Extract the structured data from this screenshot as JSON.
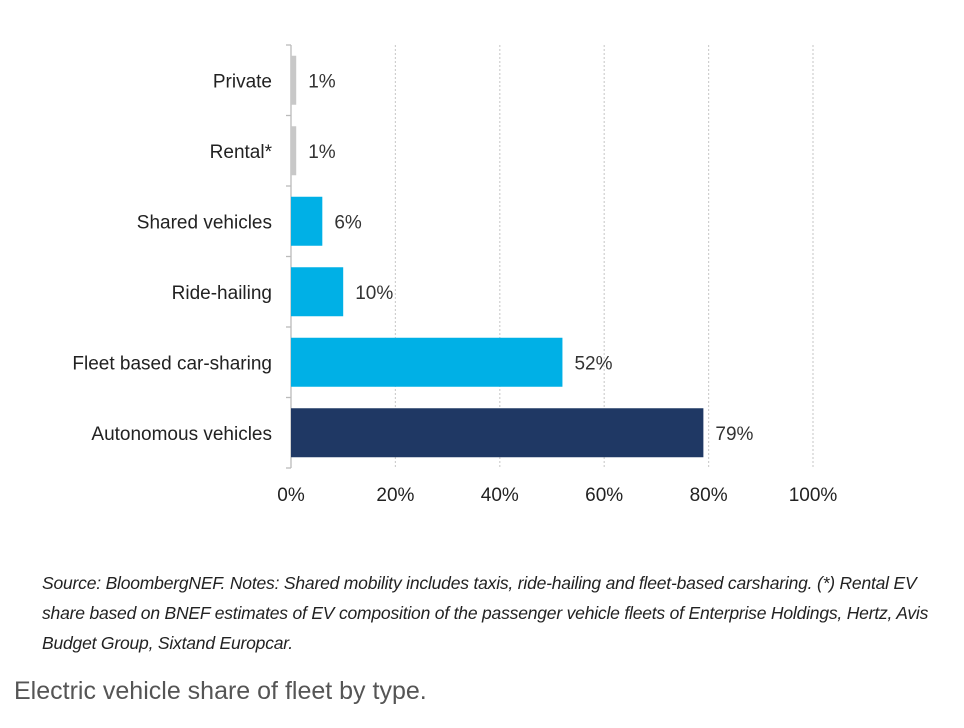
{
  "chart_data": {
    "type": "bar",
    "orientation": "horizontal",
    "categories": [
      "Private",
      "Rental*",
      "Shared vehicles",
      "Ride-hailing",
      "Fleet based car-sharing",
      "Autonomous vehicles"
    ],
    "values": [
      1,
      1,
      6,
      10,
      52,
      79
    ],
    "data_labels": [
      "1%",
      "1%",
      "6%",
      "10%",
      "52%",
      "79%"
    ],
    "colors": [
      "#c8c8c8",
      "#c8c8c8",
      "#00b0e6",
      "#00b0e6",
      "#00b0e6",
      "#1f3864"
    ],
    "xlim": [
      0,
      100
    ],
    "x_ticks": [
      "0%",
      "20%",
      "40%",
      "60%",
      "80%",
      "100%"
    ],
    "grid": "vertical dotted",
    "title": "",
    "xlabel": "",
    "ylabel": ""
  },
  "note": "Source: BloombergNEF. Notes: Shared  mobility includes taxis, ride-hailing  and  fleet-based carsharing. (*) Rental EV share based on BNEF estimates of EV composition of the passenger vehicle fleets of Enterprise Holdings, Hertz, Avis Budget Group, Sixtand  Europcar.",
  "caption": "Electric vehicle share of fleet by type."
}
